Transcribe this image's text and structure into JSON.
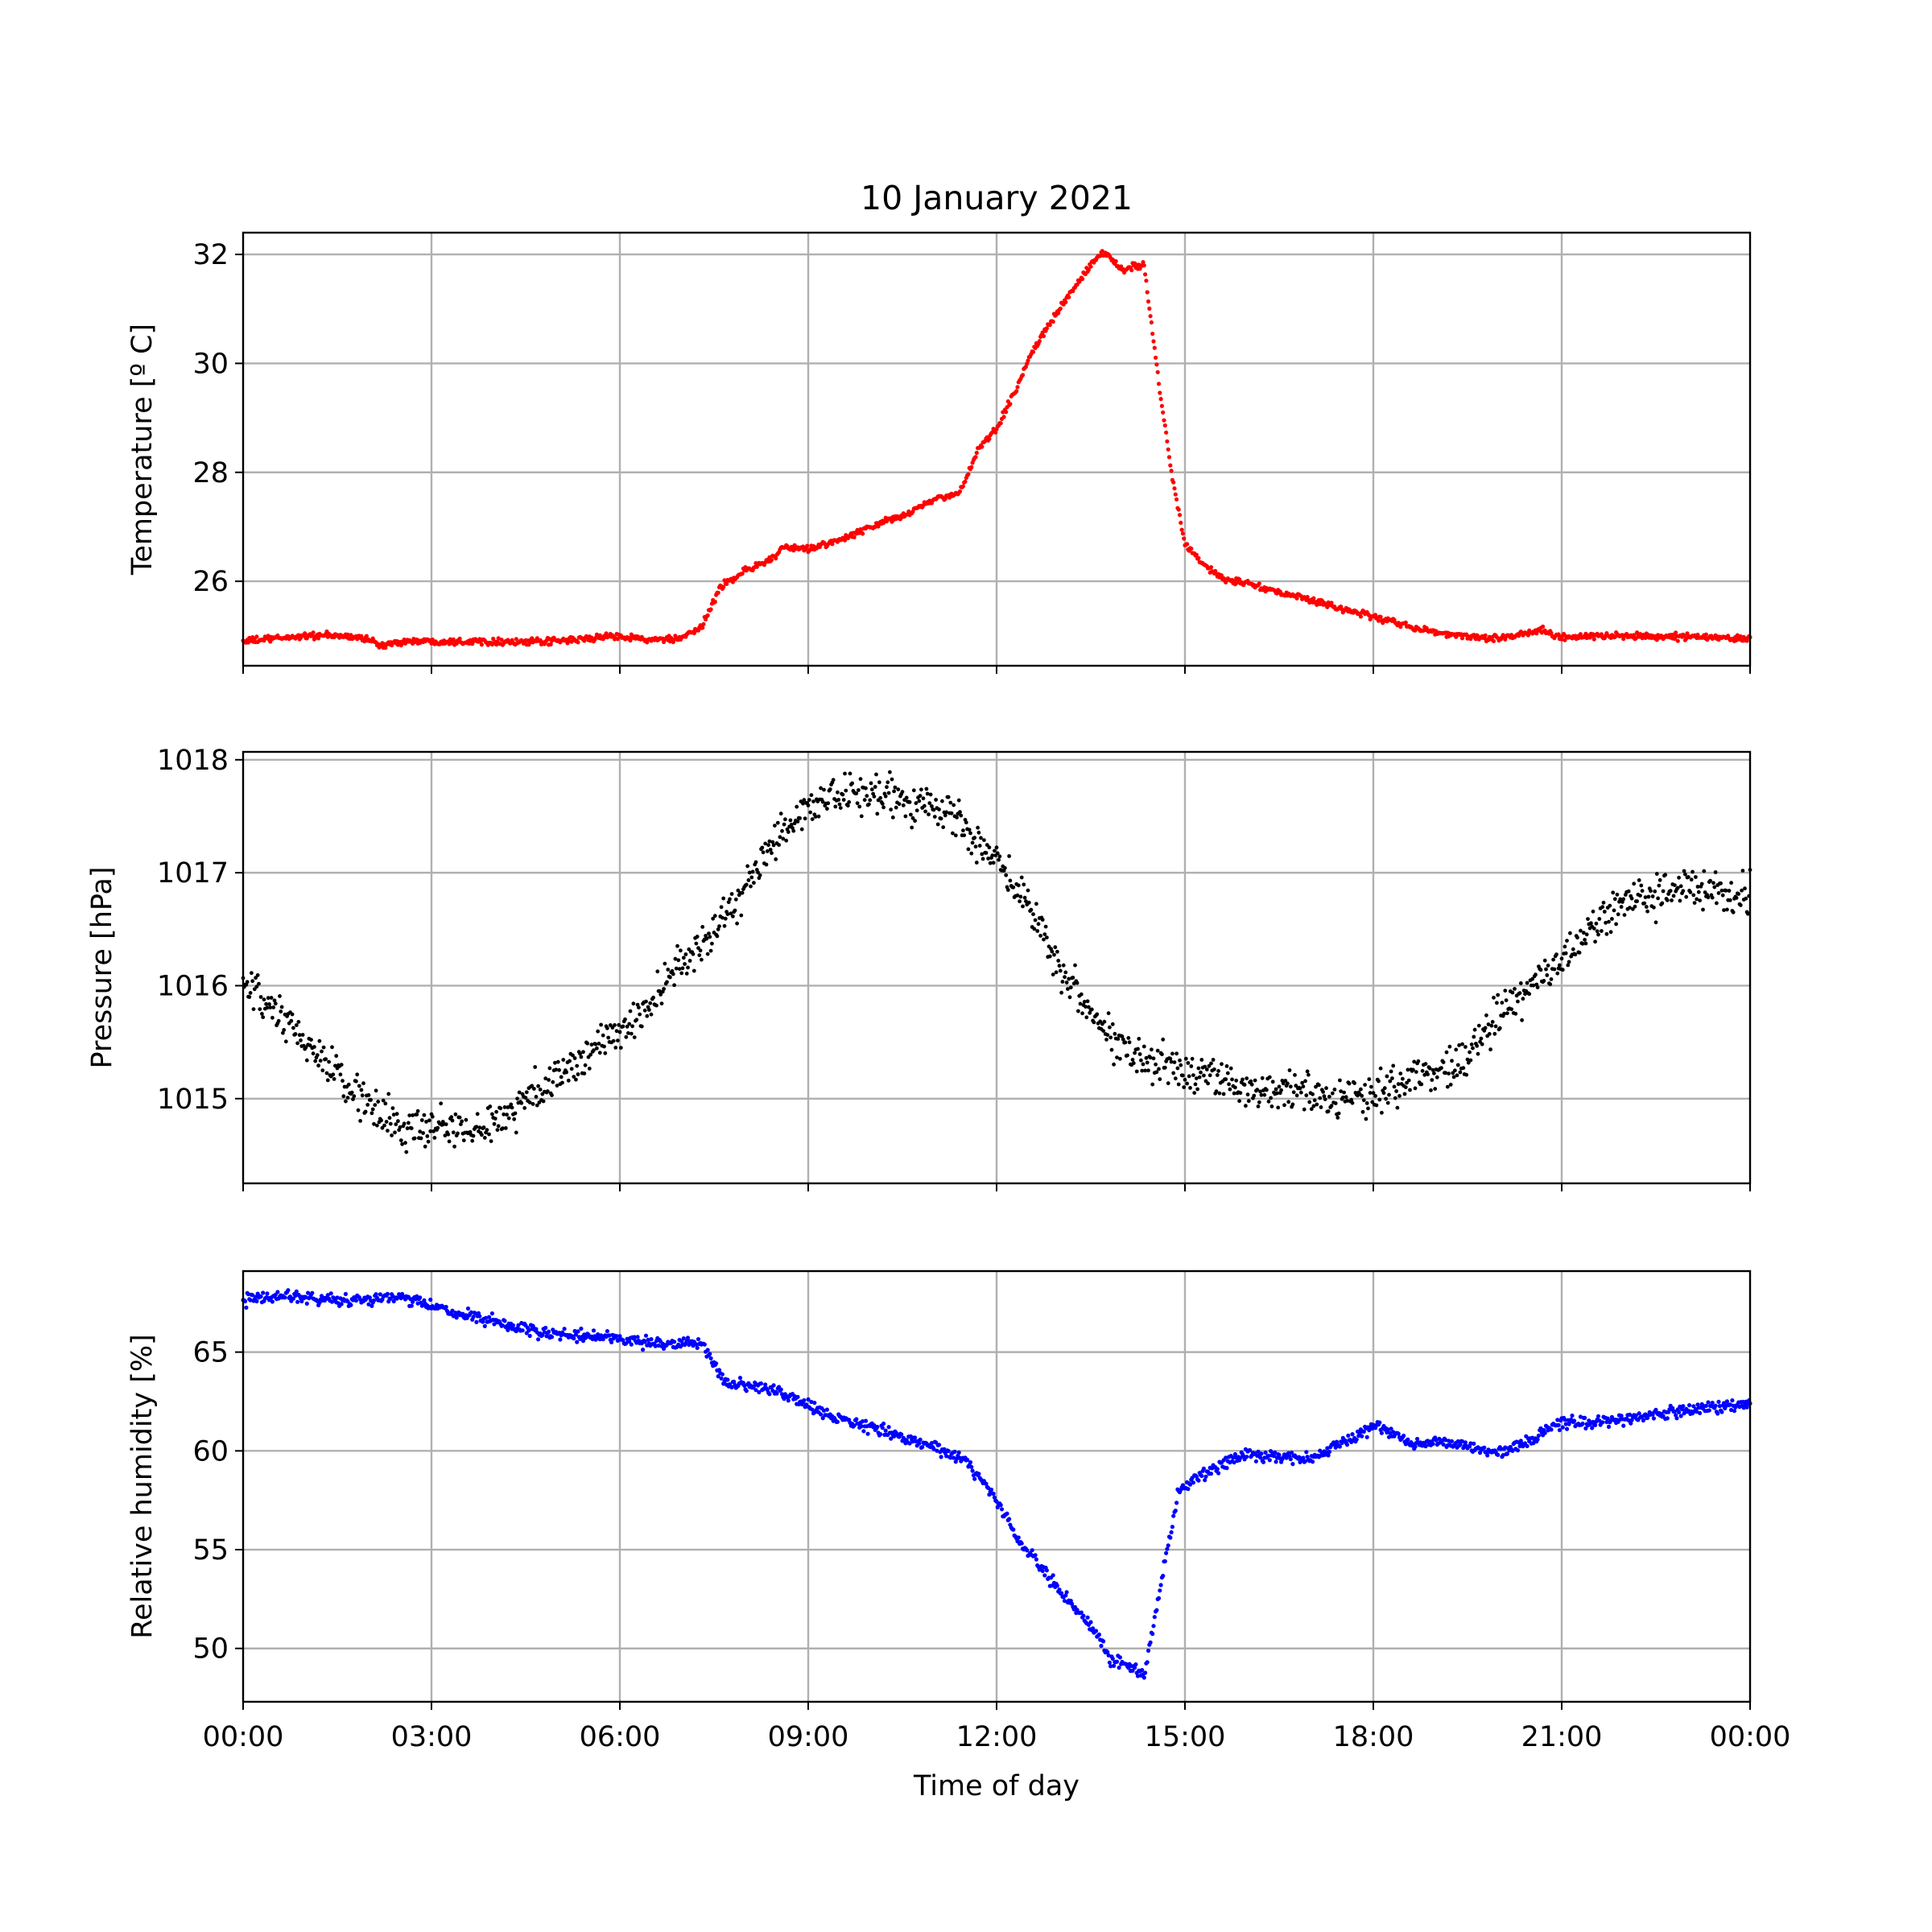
{
  "chart_data": {
    "type": "scatter",
    "title": "10 January 2021",
    "xlabel": "Time of day",
    "x_unit": "hours",
    "xlim": [
      0,
      24
    ],
    "x_ticks": [
      0,
      3,
      6,
      9,
      12,
      15,
      18,
      21,
      24
    ],
    "x_tick_labels": [
      "00:00",
      "03:00",
      "06:00",
      "09:00",
      "12:00",
      "15:00",
      "18:00",
      "21:00",
      "00:00"
    ],
    "grid": true,
    "panels": [
      {
        "ylabel": "Temperature [º C]",
        "ylim": [
          24.45,
          32.4
        ],
        "y_ticks": [
          26,
          28,
          30,
          32
        ],
        "y_tick_labels": [
          "26",
          "28",
          "30",
          "32"
        ],
        "color": "#ff0000",
        "marker_size": "small",
        "noise": 0.03,
        "series": [
          {
            "x": [
              0,
              0.5,
              1,
              1.5,
              2,
              2.2,
              2.5,
              3,
              4,
              4.5,
              5,
              6,
              6.5,
              7,
              7.3,
              7.6,
              8,
              8.4,
              8.6,
              9,
              9.5,
              10,
              10.5,
              11,
              11.4,
              11.7,
              12,
              12.3,
              12.6,
              13,
              13.5,
              13.7,
              14,
              14.2,
              14.35,
              14.6,
              14.8,
              15,
              15.3,
              15.6,
              16,
              16.5,
              17,
              18,
              19,
              20,
              20.7,
              21,
              22,
              23,
              24
            ],
            "y": [
              24.9,
              24.95,
              25.0,
              25.0,
              24.95,
              24.8,
              24.9,
              24.9,
              24.9,
              24.88,
              24.9,
              25.0,
              24.92,
              24.95,
              25.15,
              25.9,
              26.2,
              26.4,
              26.6,
              26.6,
              26.75,
              27.0,
              27.2,
              27.5,
              27.6,
              28.4,
              28.8,
              29.5,
              30.3,
              31.0,
              31.8,
              32.05,
              31.7,
              31.8,
              31.8,
              29.5,
              27.9,
              26.7,
              26.3,
              26.05,
              25.95,
              25.8,
              25.65,
              25.35,
              25.05,
              24.95,
              25.1,
              24.98,
              25.0,
              24.98,
              24.95
            ]
          }
        ]
      },
      {
        "ylabel": "Pressure [hPa]",
        "ylim": [
          1014.25,
          1018.07
        ],
        "y_ticks": [
          1015,
          1016,
          1017,
          1018
        ],
        "y_tick_labels": [
          "1015",
          "1016",
          "1017",
          "1018"
        ],
        "color": "#000000",
        "marker_size": "small",
        "noise": 0.09,
        "series": [
          {
            "x": [
              0,
              0.5,
              1,
              1.5,
              2,
              2.5,
              3,
              3.5,
              4,
              4.5,
              5,
              5.5,
              6,
              6.5,
              7,
              7.5,
              8,
              8.5,
              9,
              9.5,
              10,
              10.5,
              11,
              11.5,
              12,
              12.5,
              13,
              13.5,
              14,
              14.5,
              15,
              15.5,
              16,
              16.5,
              17,
              17.5,
              18,
              18.5,
              19,
              19.5,
              20,
              20.5,
              21,
              21.5,
              22,
              22.5,
              23,
              23.5,
              24
            ],
            "y": [
              1016.0,
              1015.75,
              1015.5,
              1015.2,
              1014.95,
              1014.72,
              1014.75,
              1014.72,
              1014.78,
              1015.0,
              1015.2,
              1015.38,
              1015.6,
              1015.85,
              1016.2,
              1016.5,
              1016.85,
              1017.3,
              1017.6,
              1017.65,
              1017.7,
              1017.65,
              1017.6,
              1017.4,
              1017.1,
              1016.75,
              1016.2,
              1015.75,
              1015.45,
              1015.35,
              1015.25,
              1015.18,
              1015.1,
              1015.08,
              1015.05,
              1015.0,
              1015.05,
              1015.15,
              1015.25,
              1015.4,
              1015.75,
              1016.0,
              1016.2,
              1016.5,
              1016.75,
              1016.8,
              1016.85,
              1016.85,
              1016.8
            ]
          }
        ]
      },
      {
        "ylabel": "Relative humidity [%]",
        "ylim": [
          47.3,
          69.1
        ],
        "y_ticks": [
          50,
          55,
          60,
          65
        ],
        "y_tick_labels": [
          "50",
          "55",
          "60",
          "65"
        ],
        "color": "#0000ff",
        "marker_size": "small",
        "noise": 0.15,
        "series": [
          {
            "x": [
              0,
              0.7,
              1.5,
              2.5,
              3,
              3.5,
              4,
              4.5,
              5,
              6,
              6.5,
              7,
              7.3,
              7.7,
              8,
              8.5,
              9,
              9.5,
              10,
              10.5,
              11,
              11.5,
              12,
              12.4,
              12.8,
              13.2,
              13.6,
              13.8,
              14.2,
              14.35,
              14.6,
              14.9,
              15.2,
              15.6,
              16,
              16.5,
              17,
              17.5,
              18,
              18.3,
              18.6,
              19,
              19.5,
              20,
              20.5,
              21,
              21.5,
              22,
              23,
              24
            ],
            "y": [
              67.6,
              67.9,
              67.6,
              67.8,
              67.3,
              66.9,
              66.5,
              66.1,
              65.9,
              65.7,
              65.4,
              65.5,
              65.4,
              63.4,
              63.3,
              63.0,
              62.3,
              61.6,
              61.2,
              60.7,
              60.2,
              59.5,
              57.5,
              55.3,
              53.7,
              52.2,
              50.8,
              49.5,
              49.0,
              48.5,
              53.0,
              58.0,
              58.6,
              59.3,
              59.8,
              59.7,
              59.6,
              60.5,
              61.2,
              61.0,
              60.3,
              60.5,
              60.3,
              59.9,
              60.5,
              61.5,
              61.4,
              61.6,
              62.1,
              62.4
            ]
          }
        ]
      }
    ]
  }
}
